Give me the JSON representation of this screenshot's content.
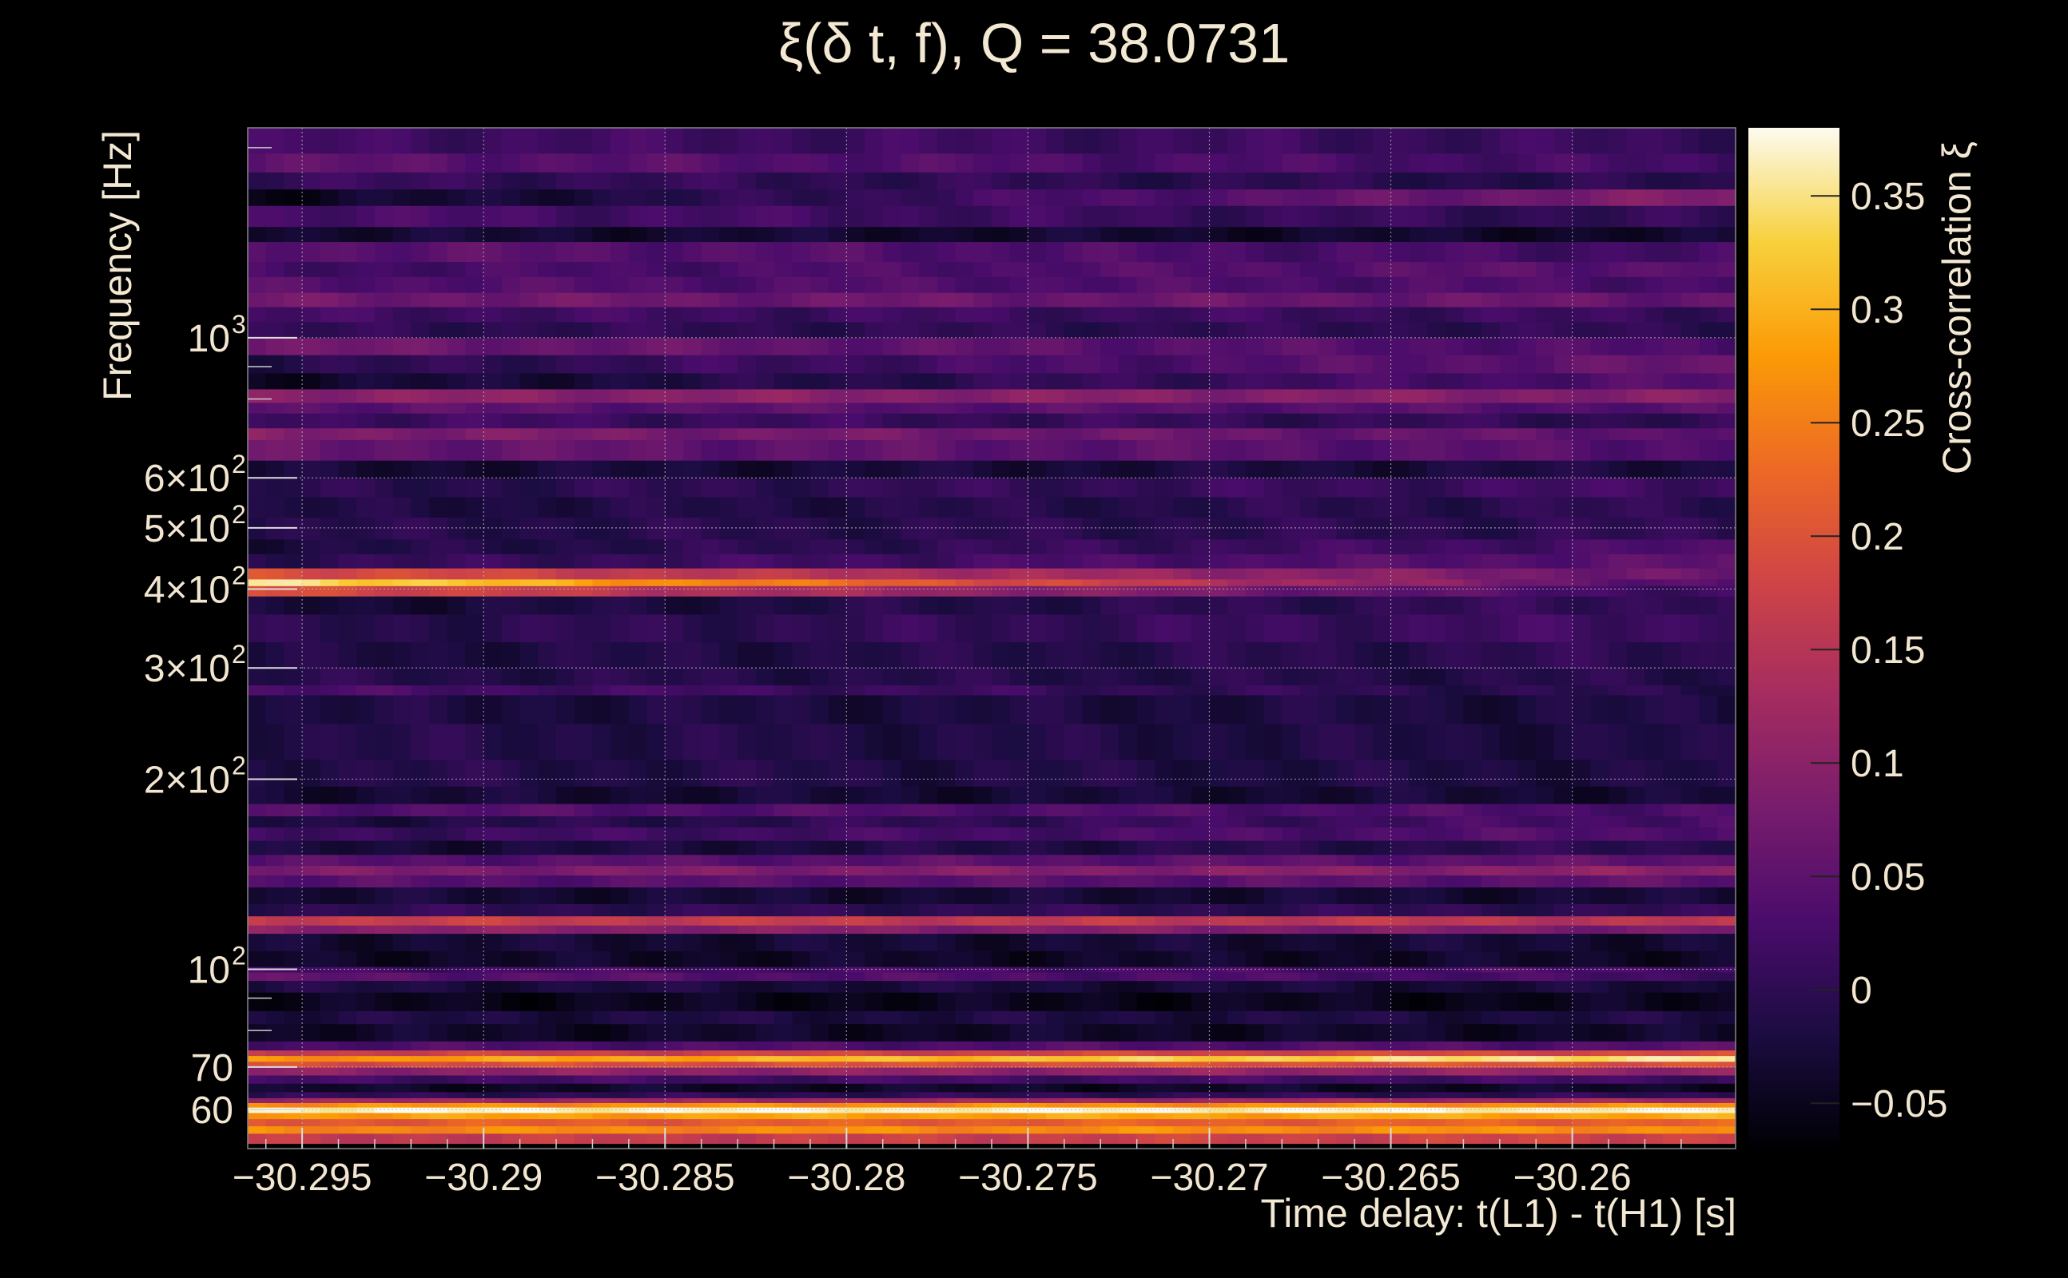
{
  "chart_data": {
    "type": "heatmap",
    "title": "ξ(δ t, f), Q = 38.0731",
    "xlabel": "Time delay: t(L1) - t(H1) [s]",
    "ylabel": "Frequency [Hz]",
    "colorbar_label": "Cross-correlation ξ",
    "xlim": [
      -30.2965,
      -30.2555
    ],
    "ylim": [
      52,
      2150
    ],
    "yscale": "log",
    "clim": [
      -0.07,
      0.38
    ],
    "x_ticks": [
      {
        "value": -30.295,
        "label": "−30.295"
      },
      {
        "value": -30.29,
        "label": "−30.29"
      },
      {
        "value": -30.285,
        "label": "−30.285"
      },
      {
        "value": -30.28,
        "label": "−30.28"
      },
      {
        "value": -30.275,
        "label": "−30.275"
      },
      {
        "value": -30.27,
        "label": "−30.27"
      },
      {
        "value": -30.265,
        "label": "−30.265"
      },
      {
        "value": -30.26,
        "label": "−30.26"
      }
    ],
    "y_ticks": [
      {
        "value": 60,
        "label": "60"
      },
      {
        "value": 70,
        "label": "70"
      },
      {
        "value": 100,
        "label": "10",
        "sup": "2"
      },
      {
        "value": 200,
        "label": "2×10",
        "sup": "2"
      },
      {
        "value": 300,
        "label": "3×10",
        "sup": "2"
      },
      {
        "value": 400,
        "label": "4×10",
        "sup": "2"
      },
      {
        "value": 500,
        "label": "5×10",
        "sup": "2"
      },
      {
        "value": 600,
        "label": "6×10",
        "sup": "2"
      },
      {
        "value": 1000,
        "label": "10",
        "sup": "3"
      }
    ],
    "colorbar_ticks": [
      {
        "value": 0.35,
        "label": "0.35"
      },
      {
        "value": 0.3,
        "label": "0.3"
      },
      {
        "value": 0.25,
        "label": "0.25"
      },
      {
        "value": 0.2,
        "label": "0.2"
      },
      {
        "value": 0.15,
        "label": "0.15"
      },
      {
        "value": 0.1,
        "label": "0.1"
      },
      {
        "value": 0.05,
        "label": "0.05"
      },
      {
        "value": 0,
        "label": "0"
      },
      {
        "value": -0.05,
        "label": "−0.05"
      }
    ],
    "colormap": [
      "#000004",
      "#1b0c41",
      "#4a0c6b",
      "#781c6d",
      "#a52c60",
      "#cf4446",
      "#ed6925",
      "#fb9b06",
      "#f7d13d",
      "#fcfbef"
    ],
    "frequency_bands": [
      {
        "f": [
          53,
          55
        ],
        "left": 0.16,
        "right": 0.18
      },
      {
        "f": [
          55,
          56.5
        ],
        "left": 0.26,
        "right": 0.27
      },
      {
        "f": [
          56.5,
          58
        ],
        "left": 0.21,
        "right": 0.22
      },
      {
        "f": [
          58,
          59.3
        ],
        "left": 0.28,
        "right": 0.29
      },
      {
        "f": [
          59.3,
          60.5
        ],
        "left": 0.37,
        "right": 0.37
      },
      {
        "f": [
          60.5,
          61.5
        ],
        "left": 0.27,
        "right": 0.27
      },
      {
        "f": [
          61.5,
          62.6
        ],
        "left": 0.12,
        "right": 0.12
      },
      {
        "f": [
          62.6,
          64
        ],
        "left": 0.0,
        "right": 0.0
      },
      {
        "f": [
          64,
          66
        ],
        "left": -0.04,
        "right": -0.04
      },
      {
        "f": [
          66,
          68
        ],
        "left": 0.02,
        "right": 0.02
      },
      {
        "f": [
          68,
          70
        ],
        "left": 0.1,
        "right": 0.11
      },
      {
        "f": [
          70,
          71.5
        ],
        "left": 0.19,
        "right": 0.2
      },
      {
        "f": [
          71.5,
          73
        ],
        "left": 0.27,
        "right": 0.36
      },
      {
        "f": [
          73,
          74.5
        ],
        "left": 0.17,
        "right": 0.19
      },
      {
        "f": [
          74.5,
          77
        ],
        "left": 0.03,
        "right": 0.04
      },
      {
        "f": [
          77,
          82
        ],
        "left": -0.04,
        "right": -0.04
      },
      {
        "f": [
          82,
          86
        ],
        "left": -0.02,
        "right": -0.02
      },
      {
        "f": [
          86,
          92
        ],
        "left": -0.05,
        "right": -0.05
      },
      {
        "f": [
          92,
          96
        ],
        "left": -0.02,
        "right": -0.03
      },
      {
        "f": [
          96,
          99
        ],
        "left": 0.05,
        "right": 0.02
      },
      {
        "f": [
          99,
          101
        ],
        "left": 0.02,
        "right": 0.03
      },
      {
        "f": [
          101,
          107
        ],
        "left": -0.04,
        "right": -0.04
      },
      {
        "f": [
          107,
          114
        ],
        "left": -0.03,
        "right": -0.03
      },
      {
        "f": [
          114,
          117.5
        ],
        "left": 0.1,
        "right": 0.08
      },
      {
        "f": [
          117.5,
          121.5
        ],
        "left": 0.17,
        "right": 0.15
      },
      {
        "f": [
          121.5,
          127
        ],
        "left": 0.0,
        "right": 0.0
      },
      {
        "f": [
          127,
          135
        ],
        "left": -0.03,
        "right": -0.03
      },
      {
        "f": [
          135,
          141
        ],
        "left": 0.04,
        "right": 0.05
      },
      {
        "f": [
          141,
          146
        ],
        "left": 0.08,
        "right": 0.1
      },
      {
        "f": [
          146,
          152
        ],
        "left": 0.04,
        "right": 0.05
      },
      {
        "f": [
          152,
          160
        ],
        "left": -0.03,
        "right": 0.0
      },
      {
        "f": [
          160,
          168
        ],
        "left": 0.01,
        "right": 0.04
      },
      {
        "f": [
          168,
          175
        ],
        "left": -0.02,
        "right": 0.03
      },
      {
        "f": [
          175,
          183
        ],
        "left": 0.04,
        "right": 0.03
      },
      {
        "f": [
          183,
          195
        ],
        "left": -0.03,
        "right": -0.03
      },
      {
        "f": [
          195,
          215
        ],
        "left": -0.01,
        "right": -0.02
      },
      {
        "f": [
          215,
          245
        ],
        "left": -0.01,
        "right": -0.02
      },
      {
        "f": [
          245,
          272
        ],
        "left": -0.02,
        "right": -0.02
      },
      {
        "f": [
          272,
          282
        ],
        "left": 0.03,
        "right": -0.01
      },
      {
        "f": [
          282,
          300
        ],
        "left": -0.01,
        "right": -0.01
      },
      {
        "f": [
          300,
          330
        ],
        "left": -0.02,
        "right": 0.0
      },
      {
        "f": [
          330,
          365
        ],
        "left": -0.01,
        "right": 0.02
      },
      {
        "f": [
          365,
          390
        ],
        "left": -0.03,
        "right": 0.01
      },
      {
        "f": [
          390,
          405
        ],
        "left": 0.2,
        "right": 0.01
      },
      {
        "f": [
          405,
          415
        ],
        "left": 0.36,
        "right": 0.03
      },
      {
        "f": [
          415,
          432
        ],
        "left": 0.2,
        "right": 0.06
      },
      {
        "f": [
          432,
          455
        ],
        "left": 0.0,
        "right": 0.05
      },
      {
        "f": [
          455,
          480
        ],
        "left": -0.02,
        "right": 0.03
      },
      {
        "f": [
          480,
          520
        ],
        "left": -0.01,
        "right": 0.0
      },
      {
        "f": [
          520,
          560
        ],
        "left": -0.02,
        "right": 0.0
      },
      {
        "f": [
          560,
          600
        ],
        "left": -0.01,
        "right": 0.02
      },
      {
        "f": [
          600,
          640
        ],
        "left": -0.03,
        "right": -0.02
      },
      {
        "f": [
          640,
          690
        ],
        "left": 0.06,
        "right": 0.04
      },
      {
        "f": [
          690,
          720
        ],
        "left": 0.09,
        "right": 0.05
      },
      {
        "f": [
          720,
          760
        ],
        "left": 0.02,
        "right": 0.0
      },
      {
        "f": [
          760,
          790
        ],
        "left": 0.05,
        "right": 0.04
      },
      {
        "f": [
          790,
          830
        ],
        "left": 0.1,
        "right": 0.09
      },
      {
        "f": [
          830,
          880
        ],
        "left": -0.04,
        "right": 0.04
      },
      {
        "f": [
          880,
          940
        ],
        "left": -0.01,
        "right": 0.06
      },
      {
        "f": [
          940,
          1000
        ],
        "left": 0.07,
        "right": 0.03
      },
      {
        "f": [
          1000,
          1060
        ],
        "left": 0.0,
        "right": 0.0
      },
      {
        "f": [
          1060,
          1120
        ],
        "left": 0.02,
        "right": 0.01
      },
      {
        "f": [
          1120,
          1180
        ],
        "left": 0.07,
        "right": 0.06
      },
      {
        "f": [
          1180,
          1250
        ],
        "left": 0.04,
        "right": 0.03
      },
      {
        "f": [
          1250,
          1320
        ],
        "left": 0.02,
        "right": 0.05
      },
      {
        "f": [
          1320,
          1420
        ],
        "left": 0.05,
        "right": 0.02
      },
      {
        "f": [
          1420,
          1500
        ],
        "left": -0.03,
        "right": -0.04
      },
      {
        "f": [
          1500,
          1620
        ],
        "left": 0.03,
        "right": 0.0
      },
      {
        "f": [
          1620,
          1720
        ],
        "left": -0.05,
        "right": 0.09
      },
      {
        "f": [
          1720,
          1830
        ],
        "left": 0.01,
        "right": -0.01
      },
      {
        "f": [
          1830,
          1960
        ],
        "left": 0.05,
        "right": 0.02
      },
      {
        "f": [
          1960,
          2150
        ],
        "left": 0.02,
        "right": 0.01
      }
    ]
  }
}
